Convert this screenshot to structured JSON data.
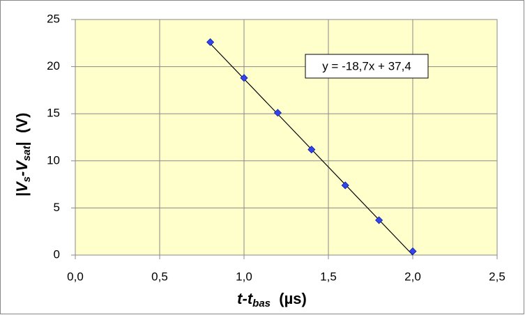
{
  "chart_data": {
    "type": "scatter",
    "x_label": [
      "t-t",
      "bas",
      "  (µs)"
    ],
    "y_label": [
      "|V",
      "s",
      "-V",
      "sat",
      "|  (V)"
    ],
    "x": [
      0.8,
      1.0,
      1.2,
      1.4,
      1.6,
      1.8,
      2.0
    ],
    "series": [
      {
        "color": "#3344ee",
        "values": [
          22.6,
          18.8,
          15.1,
          11.2,
          7.4,
          3.7,
          0.4
        ]
      }
    ],
    "trendline": {
      "slope": -18.7,
      "intercept": 37.4,
      "label": "y = -18,7x + 37,4",
      "color": "#000000"
    },
    "xlim": [
      0,
      2.5
    ],
    "xticks": [
      {
        "value": 0,
        "label": "0,0"
      },
      {
        "value": 0.5,
        "label": "0,5"
      },
      {
        "value": 1,
        "label": "1,0"
      },
      {
        "value": 1.5,
        "label": "1,5"
      },
      {
        "value": 2,
        "label": "2,0"
      },
      {
        "value": 2.5,
        "label": "2,5"
      }
    ],
    "ylim": [
      0,
      25
    ],
    "yticks": [
      0,
      5,
      10,
      15,
      20,
      25
    ],
    "grid": true
  }
}
